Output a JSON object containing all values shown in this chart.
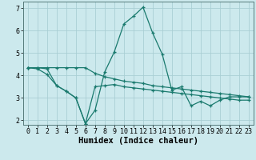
{
  "title": "",
  "xlabel": "Humidex (Indice chaleur)",
  "bg_color": "#cce9ed",
  "grid_color": "#aacfd4",
  "line_color": "#1a7a6e",
  "xmin": -0.5,
  "xmax": 23.5,
  "ymin": 1.8,
  "ymax": 7.3,
  "x_ticks": [
    0,
    1,
    2,
    3,
    4,
    5,
    6,
    7,
    8,
    9,
    10,
    11,
    12,
    13,
    14,
    15,
    16,
    17,
    18,
    19,
    20,
    21,
    22,
    23
  ],
  "y_ticks": [
    2,
    3,
    4,
    5,
    6,
    7
  ],
  "line1_x": [
    0,
    1,
    2,
    3,
    4,
    5,
    6,
    7,
    8,
    9,
    10,
    11,
    12,
    13,
    14,
    15,
    16,
    17,
    18,
    19,
    20,
    21,
    22,
    23
  ],
  "line1_y": [
    4.35,
    4.3,
    4.05,
    3.55,
    3.3,
    3.0,
    1.85,
    2.45,
    4.15,
    5.05,
    6.3,
    6.65,
    7.05,
    5.9,
    4.95,
    3.35,
    3.5,
    2.65,
    2.85,
    2.65,
    2.9,
    3.05,
    3.05,
    3.05
  ],
  "line2_x": [
    0,
    1,
    2,
    3,
    4,
    5,
    6,
    7,
    8,
    9,
    10,
    11,
    12,
    13,
    14,
    15,
    16,
    17,
    18,
    19,
    20,
    21,
    22,
    23
  ],
  "line2_y": [
    4.35,
    4.35,
    4.35,
    4.35,
    4.35,
    4.35,
    4.35,
    4.1,
    3.95,
    3.85,
    3.75,
    3.7,
    3.65,
    3.55,
    3.5,
    3.45,
    3.4,
    3.35,
    3.3,
    3.25,
    3.2,
    3.15,
    3.1,
    3.05
  ],
  "line3_x": [
    0,
    1,
    2,
    3,
    4,
    5,
    6,
    7,
    8,
    9,
    10,
    11,
    12,
    13,
    14,
    15,
    16,
    17,
    18,
    19,
    20,
    21,
    22,
    23
  ],
  "line3_y": [
    4.35,
    4.35,
    4.3,
    3.55,
    3.3,
    3.0,
    1.85,
    3.5,
    3.55,
    3.6,
    3.5,
    3.45,
    3.4,
    3.35,
    3.3,
    3.25,
    3.2,
    3.15,
    3.1,
    3.05,
    3.0,
    2.95,
    2.9,
    2.9
  ],
  "xlabel_fontsize": 7.5,
  "tick_fontsize": 6.0,
  "lw": 0.9,
  "ms": 3.5,
  "mew": 0.9
}
